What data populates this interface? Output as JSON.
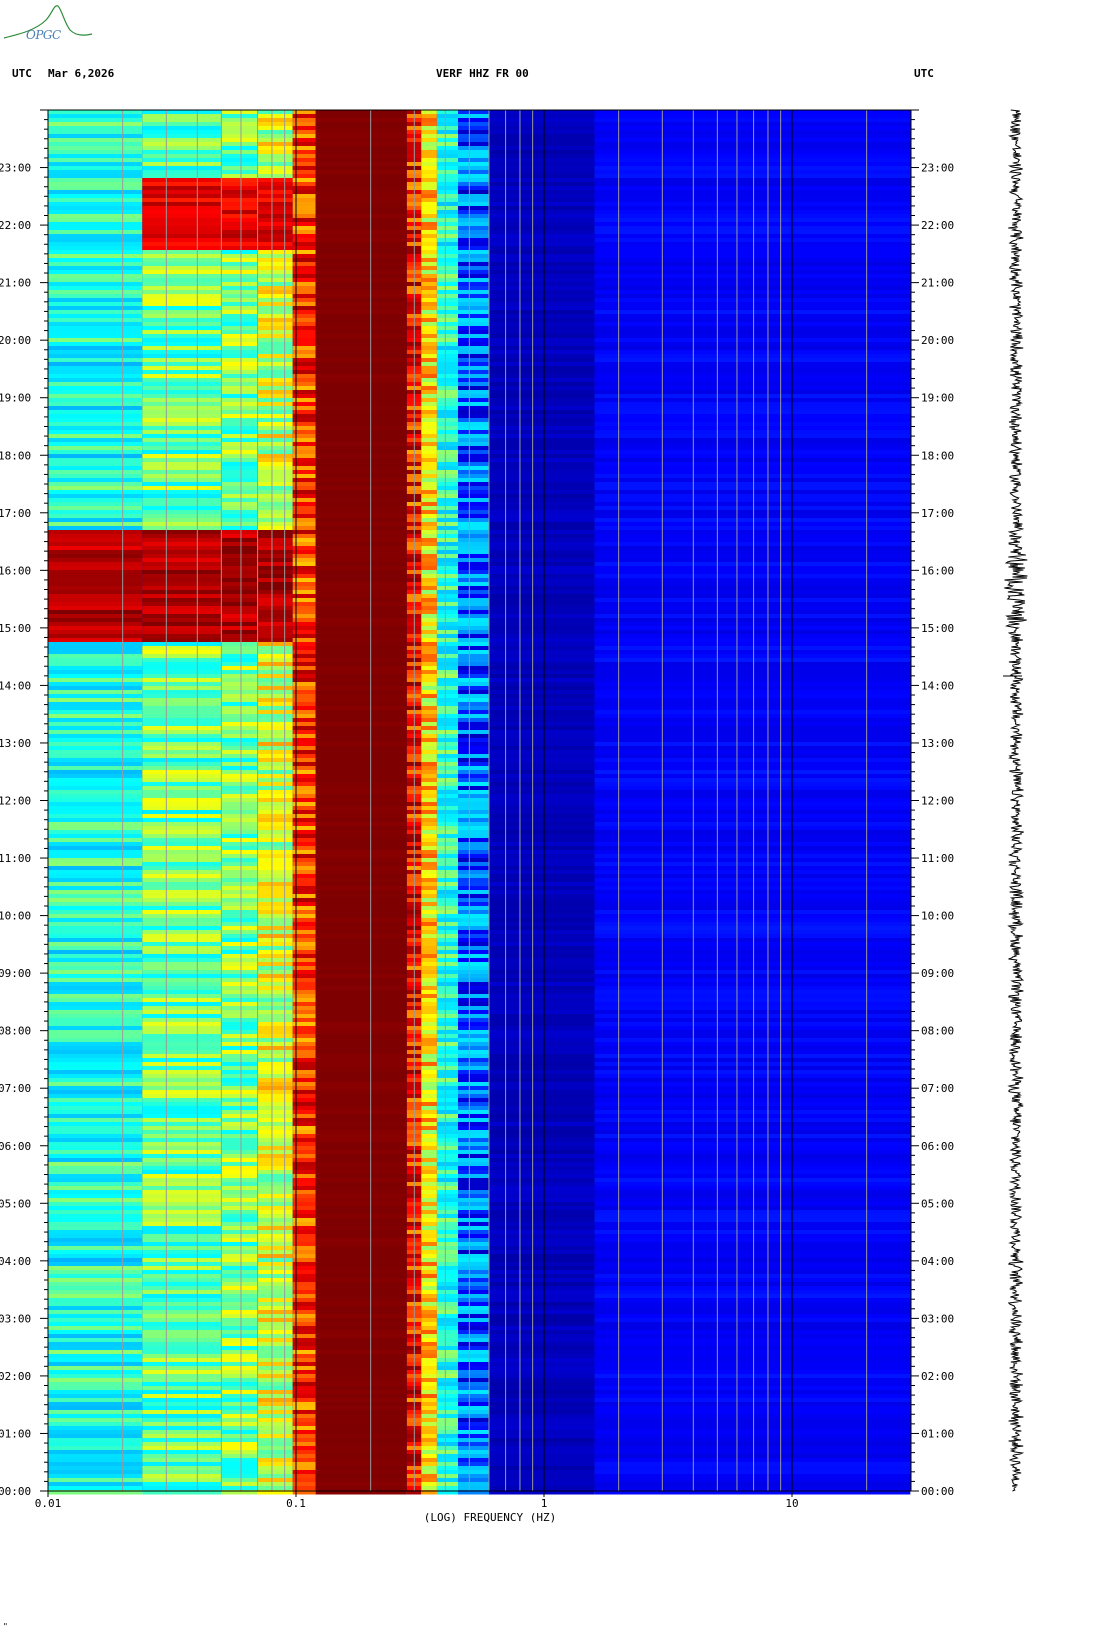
{
  "header": {
    "left_tz": "UTC",
    "date": "Mar 6,2026",
    "station": "VERF HHZ FR 00",
    "right_tz": "UTC"
  },
  "logo": {
    "text": "OPGC",
    "color": "#2e8b3a"
  },
  "corner_mark": "\"",
  "chart_data": {
    "type": "heatmap",
    "title": "VERF HHZ FR 00",
    "xlabel": "(LOG) FREQUENCY (HZ)",
    "x_scale": "log",
    "xlim": [
      0.01,
      30
    ],
    "x_tick_labels": [
      "0.01",
      "0.1",
      "1",
      "10"
    ],
    "x_tick_values": [
      0.01,
      0.1,
      1,
      10
    ],
    "ylabel": "UTC",
    "ylim": [
      0,
      24
    ],
    "y_tick_labels": [
      "00:00",
      "01:00",
      "02:00",
      "03:00",
      "04:00",
      "05:00",
      "06:00",
      "07:00",
      "08:00",
      "09:00",
      "10:00",
      "11:00",
      "12:00",
      "13:00",
      "14:00",
      "15:00",
      "16:00",
      "17:00",
      "18:00",
      "19:00",
      "20:00",
      "21:00",
      "22:00",
      "23:00"
    ],
    "colormap": [
      "#00007f",
      "#0000ff",
      "#00bfff",
      "#00ffff",
      "#7fff7f",
      "#ffff00",
      "#ff7f00",
      "#ff0000",
      "#7f0000"
    ],
    "frequency_bands": [
      {
        "f_min": 0.01,
        "f_max": 0.024,
        "base_level": 0.38
      },
      {
        "f_min": 0.024,
        "f_max": 0.05,
        "base_level": 0.48
      },
      {
        "f_min": 0.05,
        "f_max": 0.07,
        "base_level": 0.5
      },
      {
        "f_min": 0.07,
        "f_max": 0.097,
        "base_level": 0.58
      },
      {
        "f_min": 0.097,
        "f_max": 0.12,
        "base_level": 0.82
      },
      {
        "f_min": 0.12,
        "f_max": 0.28,
        "base_level": 1.0
      },
      {
        "f_min": 0.28,
        "f_max": 0.32,
        "base_level": 0.85
      },
      {
        "f_min": 0.32,
        "f_max": 0.37,
        "base_level": 0.65
      },
      {
        "f_min": 0.37,
        "f_max": 0.45,
        "base_level": 0.4
      },
      {
        "f_min": 0.45,
        "f_max": 0.6,
        "base_level": 0.2
      },
      {
        "f_min": 0.6,
        "f_max": 1.6,
        "base_level": 0.06
      },
      {
        "f_min": 1.6,
        "f_max": 30,
        "base_level": 0.12
      }
    ],
    "events": [
      {
        "t_start": 14.75,
        "t_end": 16.7,
        "f_min": 0.01,
        "f_max": 0.1,
        "level": 0.95
      },
      {
        "t_start": 21.6,
        "t_end": 22.8,
        "f_min": 0.024,
        "f_max": 0.1,
        "level": 0.9
      }
    ]
  }
}
